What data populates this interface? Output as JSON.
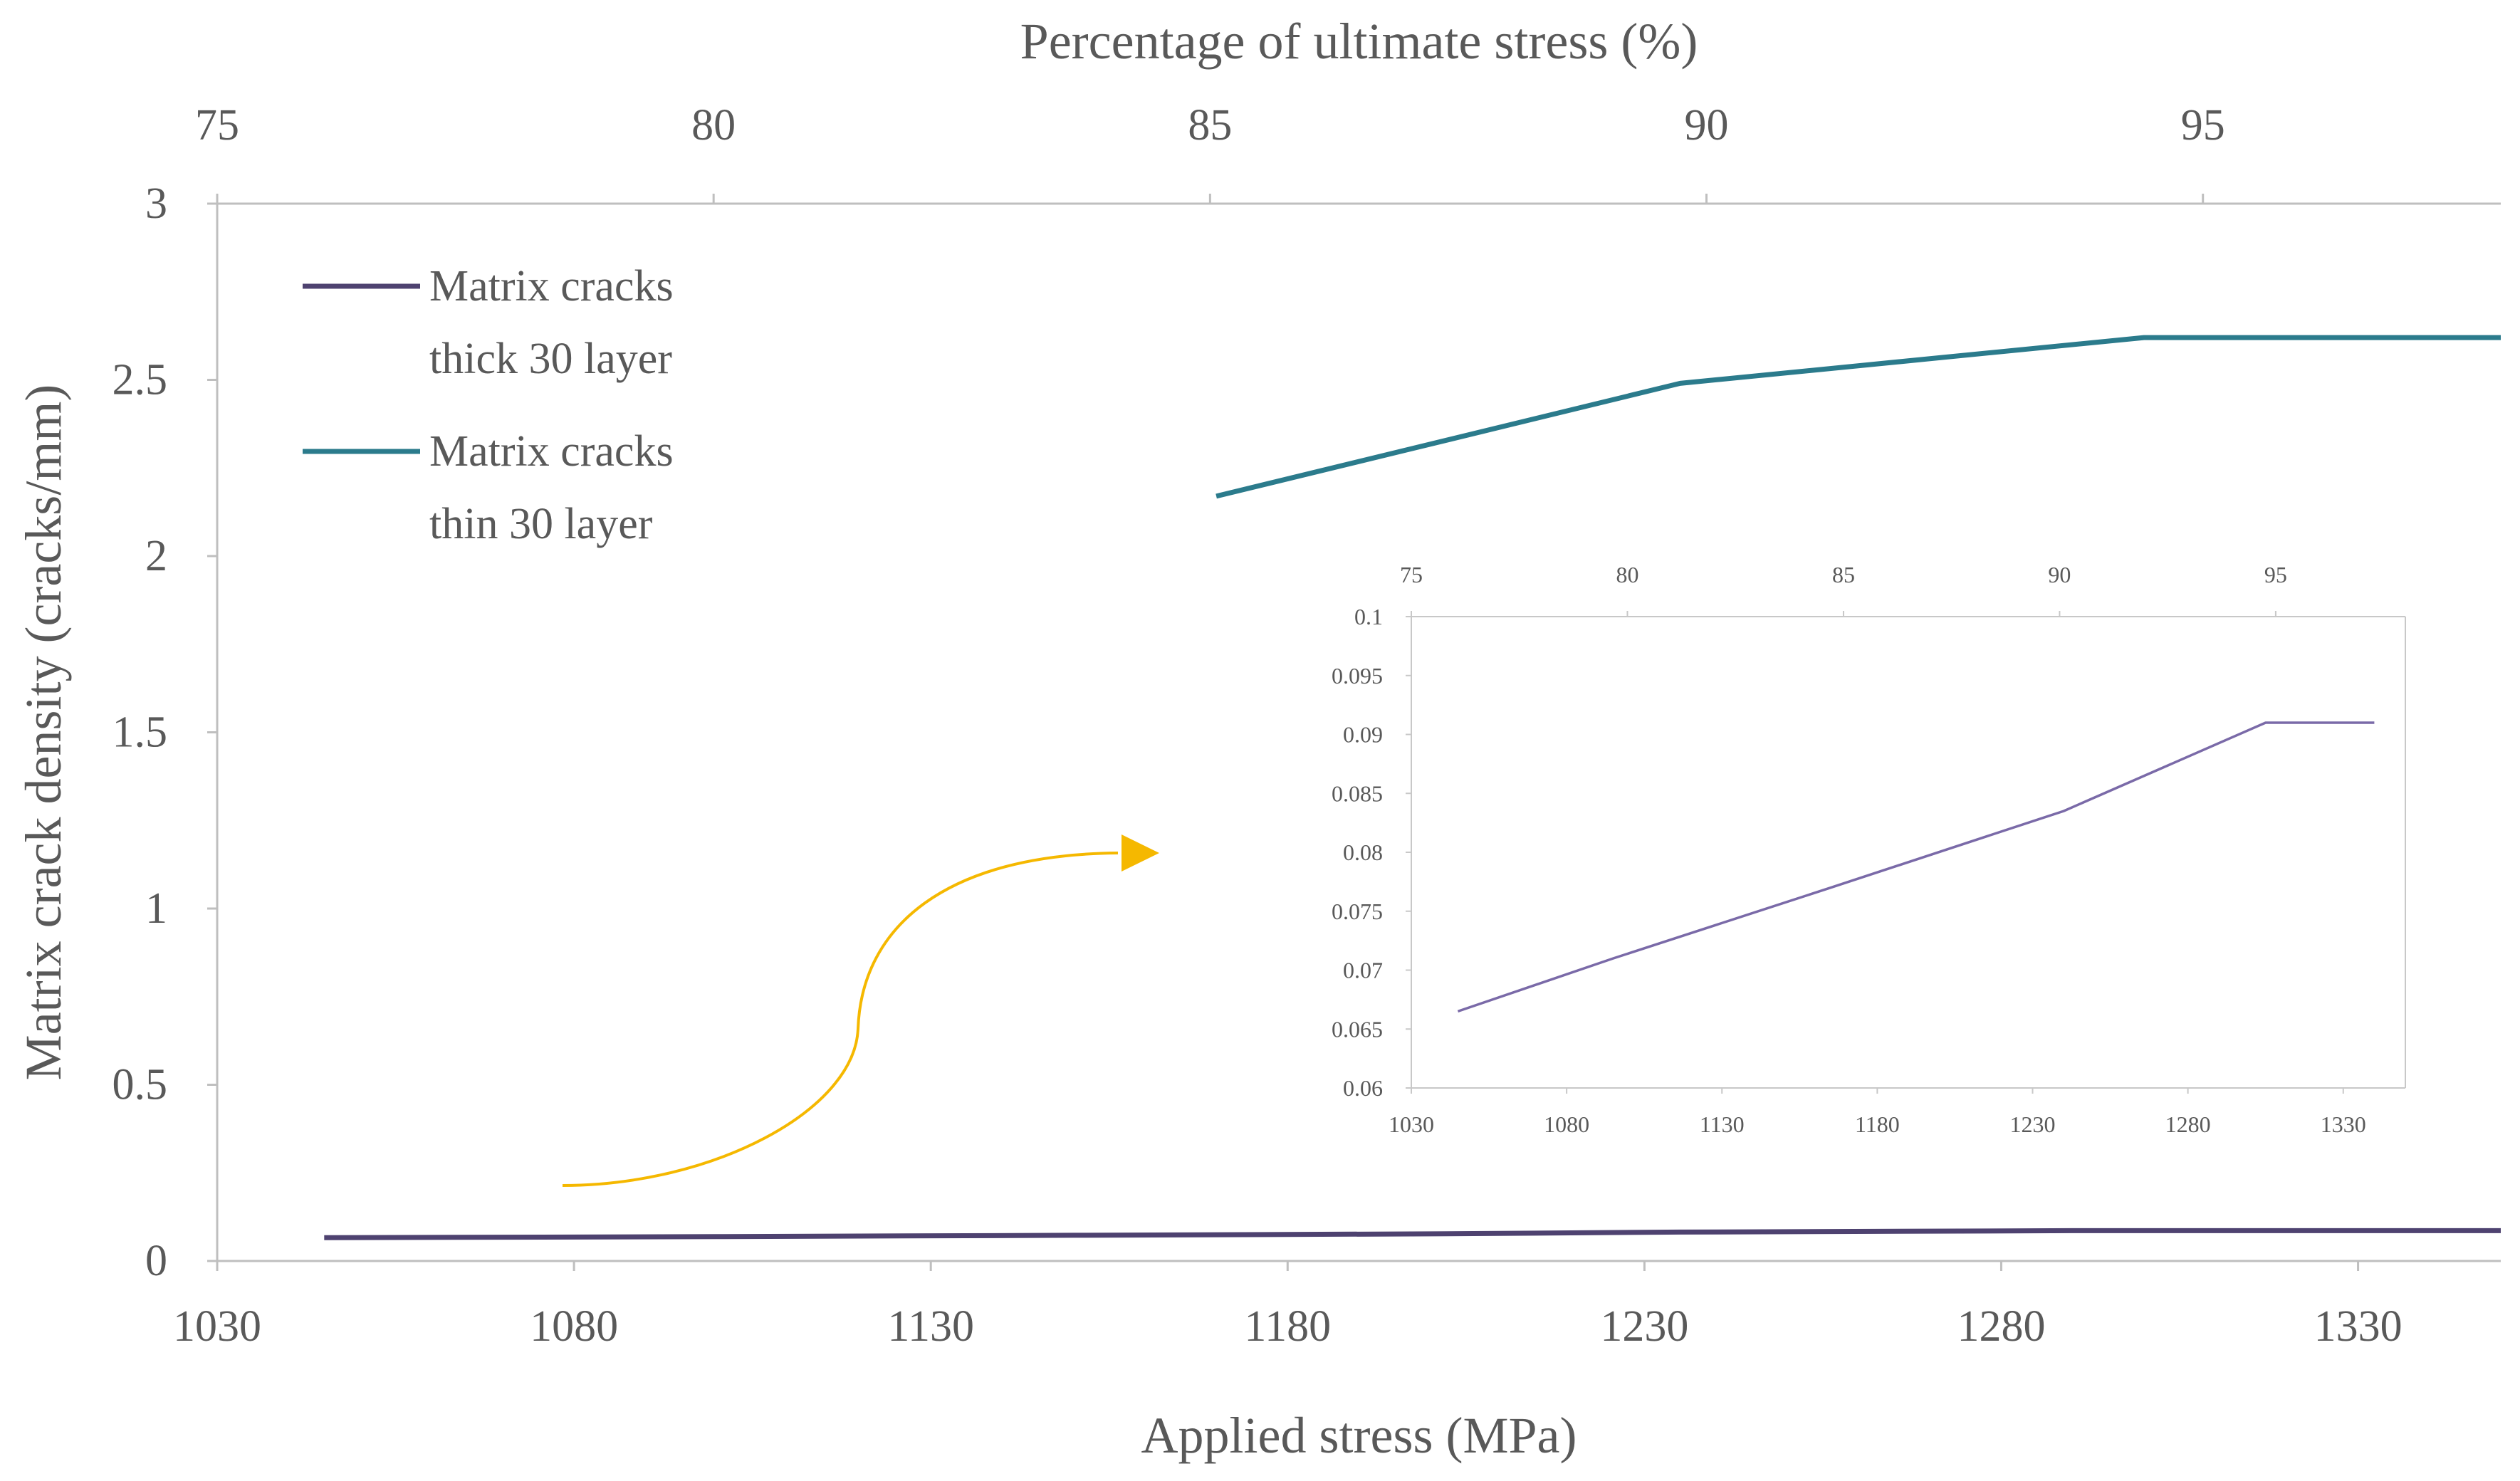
{
  "chart_data": [
    {
      "type": "line",
      "xlabel": "Applied stress (MPa)",
      "x2label": "Percentage of ultimate stress (%)",
      "ylabel": "Matrix crack density (cracks/mm)",
      "xlim": [
        1030,
        1350
      ],
      "x2lim": [
        75,
        98
      ],
      "ylim": [
        0,
        3
      ],
      "xticks": [
        1030,
        1080,
        1130,
        1180,
        1230,
        1280,
        1330
      ],
      "x2ticks": [
        75,
        80,
        85,
        90,
        95
      ],
      "yticks": [
        0,
        0.5,
        1,
        1.5,
        2,
        2.5,
        3
      ],
      "yticklabels": [
        "0",
        "0.5",
        "1",
        "1.5",
        "2",
        "2.5",
        "3"
      ],
      "legend_position": "top-left",
      "series": [
        {
          "name": "Matrix cracks thick 30 layer",
          "legend_lines": [
            "Matrix cracks",
            "thick 30 layer"
          ],
          "color": "#4e4270",
          "x": [
            1045,
            1100,
            1150,
            1200,
            1235,
            1290,
            1350
          ],
          "y": [
            0.066,
            0.069,
            0.073,
            0.077,
            0.082,
            0.086,
            0.086
          ]
        },
        {
          "name": "Matrix cracks thin 30 layer",
          "legend_lines": [
            "Matrix cracks",
            "thin 30 layer"
          ],
          "color": "#2b7b8c",
          "x": [
            1170,
            1235,
            1300,
            1350
          ],
          "y": [
            2.17,
            2.49,
            2.62,
            2.62
          ]
        }
      ]
    },
    {
      "type": "line",
      "inset": true,
      "xlim": [
        1030,
        1350
      ],
      "x2lim": [
        75,
        98
      ],
      "ylim": [
        0.06,
        0.1
      ],
      "xticks": [
        1030,
        1080,
        1130,
        1180,
        1230,
        1280,
        1330
      ],
      "x2ticks": [
        75,
        80,
        85,
        90,
        95
      ],
      "yticks": [
        0.06,
        0.065,
        0.07,
        0.075,
        0.08,
        0.085,
        0.09,
        0.095,
        0.1
      ],
      "yticklabels": [
        "0.06",
        "0.065",
        "0.07",
        "0.075",
        "0.08",
        "0.085",
        "0.09",
        "0.095",
        "0.1"
      ],
      "series": [
        {
          "color": "#7a6aa8",
          "x": [
            1045,
            1095,
            1165,
            1240,
            1305,
            1340
          ],
          "y": [
            0.0665,
            0.071,
            0.077,
            0.0835,
            0.091,
            0.091
          ]
        }
      ]
    }
  ],
  "arrow_color": "#f5b800"
}
